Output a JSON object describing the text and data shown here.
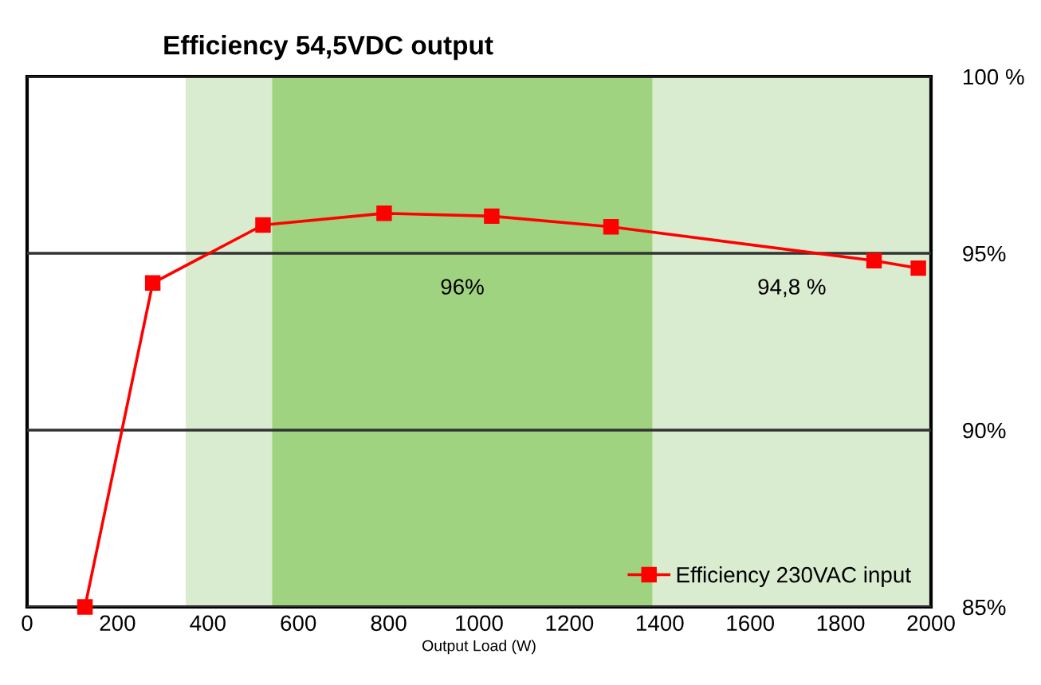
{
  "chart_data": {
    "type": "line",
    "title": "Efficiency 54,5VDC output",
    "xlabel": "Output Load (W)",
    "xlim": [
      0,
      2000
    ],
    "xticks": [
      0,
      200,
      400,
      600,
      800,
      1000,
      1200,
      1400,
      1600,
      1800,
      2000
    ],
    "ylim": [
      85,
      100
    ],
    "yticks": [
      {
        "value": 85,
        "label": "85%"
      },
      {
        "value": 90,
        "label": "90%"
      },
      {
        "value": 95,
        "label": "95%"
      },
      {
        "value": 100,
        "label": "100 %"
      }
    ],
    "grid": "y",
    "legend": "bottom right",
    "marker": "square",
    "line_style": "solid",
    "bands": [
      {
        "axis": "x",
        "from": 351,
        "to": 542,
        "color": "#d9ecd0"
      },
      {
        "axis": "x",
        "from": 542,
        "to": 1384,
        "label": "96%",
        "color": "#9fd37f"
      },
      {
        "axis": "x",
        "from": 1384,
        "to": 2000,
        "label": "94,8 %",
        "color": "#d9ecd0"
      }
    ],
    "series": [
      {
        "name": "Efficiency 230VAC input",
        "color": "#ff0000",
        "x": [
          128,
          278,
          522,
          790,
          1028,
          1292,
          1874,
          1972
        ],
        "values": [
          85,
          94.16,
          95.8,
          96.13,
          96.05,
          95.75,
          94.79,
          94.58
        ]
      }
    ]
  }
}
